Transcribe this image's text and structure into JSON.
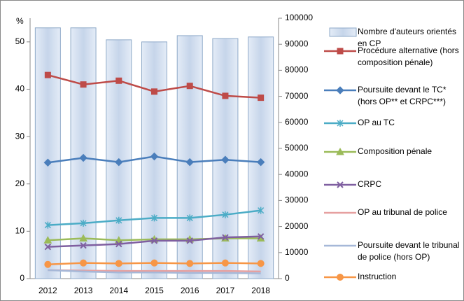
{
  "chart_data": {
    "type": "bar-line",
    "ylabel": "%",
    "categories": [
      "2012",
      "2013",
      "2014",
      "2015",
      "2016",
      "2017",
      "2018"
    ],
    "ylim": [
      0,
      55
    ],
    "yticks": [
      0,
      10,
      20,
      30,
      40,
      50
    ],
    "y2lim": [
      0,
      100000
    ],
    "y2ticks": [
      0,
      10000,
      20000,
      30000,
      40000,
      50000,
      60000,
      70000,
      80000,
      90000,
      100000
    ],
    "series": [
      {
        "name": "Nombre d'auteurs orientés en CP",
        "type": "bar",
        "axis": "y2",
        "color": "#c6d5ea",
        "values": [
          96300,
          96300,
          91700,
          90900,
          93300,
          92200,
          92800
        ]
      },
      {
        "name": "Procédure alternative (hors composition pénale)",
        "type": "line",
        "marker": "square",
        "color": "#be4b48",
        "values": [
          43,
          41,
          41.8,
          39.5,
          40.7,
          38.6,
          38.2
        ]
      },
      {
        "name": "Poursuite devant le TC* (hors OP** et CRPC***)",
        "type": "line",
        "marker": "diamond",
        "color": "#4a7ebb",
        "values": [
          24.5,
          25.5,
          24.6,
          25.8,
          24.6,
          25.1,
          24.6
        ]
      },
      {
        "name": "OP au TC",
        "type": "line",
        "marker": "star",
        "color": "#4bacc6",
        "values": [
          11.3,
          11.7,
          12.3,
          12.8,
          12.8,
          13.5,
          14.4
        ]
      },
      {
        "name": "Composition pénale",
        "type": "line",
        "marker": "triangle",
        "color": "#9bbb59",
        "values": [
          8.1,
          8.5,
          8.1,
          8.3,
          8.3,
          8.5,
          8.5
        ]
      },
      {
        "name": "CRPC",
        "type": "line",
        "marker": "x",
        "color": "#7f5fa0",
        "values": [
          6.7,
          7.0,
          7.3,
          8.0,
          8.0,
          8.7,
          8.9
        ]
      },
      {
        "name": "OP au tribunal de police",
        "type": "line",
        "marker": "none",
        "color": "#e6a0a0",
        "values": [
          1.8,
          1.7,
          1.6,
          1.6,
          1.6,
          1.6,
          1.5
        ]
      },
      {
        "name": "Poursuite devant le tribunal de police (hors OP)",
        "type": "line",
        "marker": "none",
        "color": "#a6b8d8",
        "values": [
          1.8,
          1.5,
          1.3,
          1.3,
          1.2,
          1.2,
          1.1
        ]
      },
      {
        "name": "Instruction",
        "type": "line",
        "marker": "circle",
        "color": "#f79646",
        "values": [
          3.0,
          3.3,
          3.2,
          3.3,
          3.2,
          3.3,
          3.2
        ]
      }
    ]
  }
}
